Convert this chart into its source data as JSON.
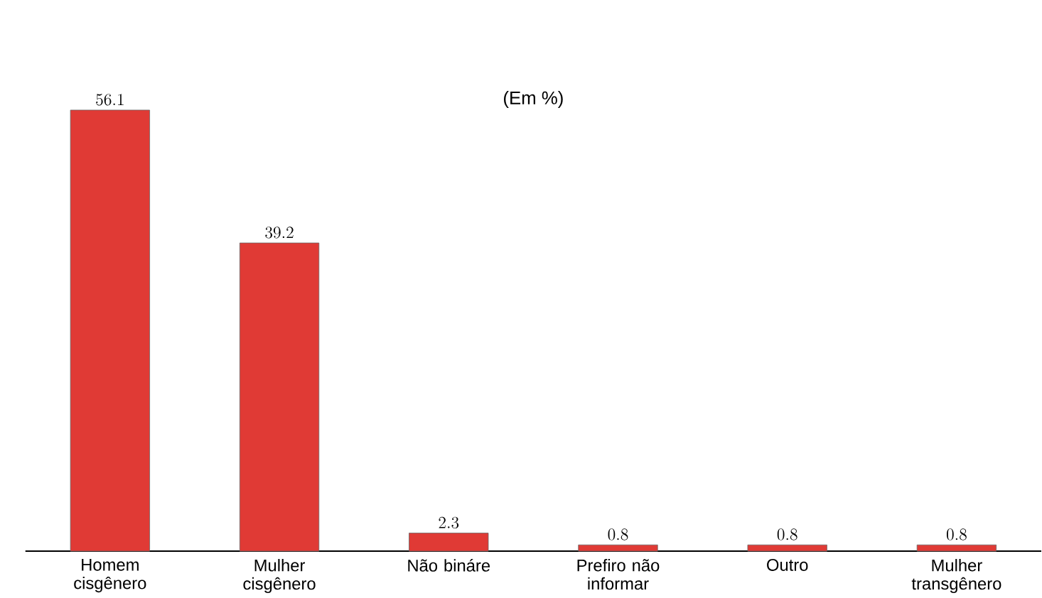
{
  "chart_data": {
    "type": "bar",
    "title": "(Em %)",
    "categories": [
      "Homem cisgênero",
      "Mulher cisgênero",
      "Não bináre",
      "Prefiro não informar",
      "Outro",
      "Mulher transgênero"
    ],
    "values": [
      56.1,
      39.2,
      2.3,
      0.8,
      0.8,
      0.8
    ],
    "color": "#e03a35",
    "data_labels": true
  }
}
